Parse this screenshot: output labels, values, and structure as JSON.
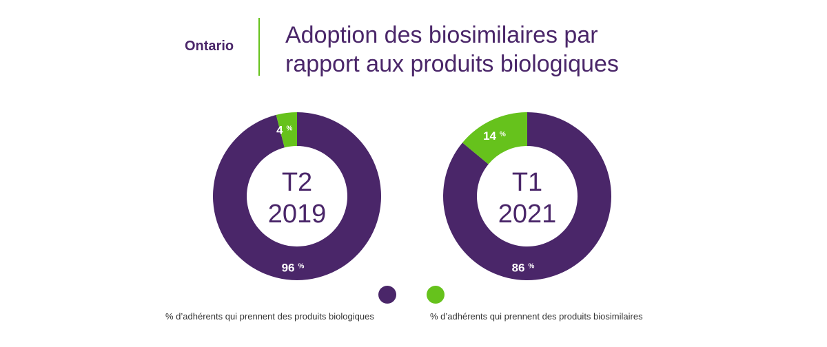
{
  "header": {
    "region": "Ontario",
    "title_line1": "Adoption des biosimilaires par",
    "title_line2": "rapport aux produits biologiques"
  },
  "colors": {
    "biologic": "#4a2669",
    "biosimilar": "#66c21c",
    "divider": "#66c21c"
  },
  "legend": {
    "biologic": "% d’adhérents qui prennent des produits biologiques",
    "biosimilar": "% d’adhérents qui prennent des produits biosimilaires"
  },
  "chart_data": [
    {
      "type": "pie",
      "donut": true,
      "center_label": [
        "T2",
        "2019"
      ],
      "categories": [
        "% d’adhérents qui prennent des produits biologiques",
        "% d’adhérents qui prennent des produits biosimilaires"
      ],
      "values": [
        96,
        4
      ],
      "value_labels": [
        "96 %",
        "4 %"
      ]
    },
    {
      "type": "pie",
      "donut": true,
      "center_label": [
        "T1",
        "2021"
      ],
      "categories": [
        "% d’adhérents qui prennent des produits biologiques",
        "% d’adhérents qui prennent des produits biosimilaires"
      ],
      "values": [
        86,
        14
      ],
      "value_labels": [
        "86 %",
        "14 %"
      ]
    }
  ]
}
